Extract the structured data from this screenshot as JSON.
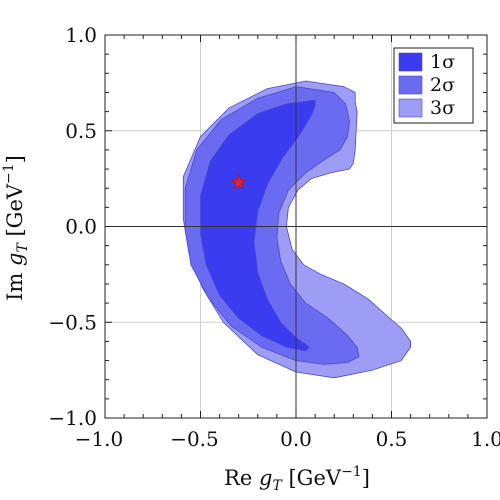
{
  "chart_data": {
    "type": "contour",
    "xlabel": "Re g_T [GeV^-1]",
    "ylabel": "Im g_T [GeV^-1]",
    "xlim": [
      -1.0,
      1.0
    ],
    "ylim": [
      -1.0,
      1.0
    ],
    "xticks": [
      "−1.0",
      "−0.5",
      "0.0",
      "0.5",
      "1.0"
    ],
    "yticks": [
      "−1.0",
      "−0.5",
      "0.0",
      "0.5",
      "1.0"
    ],
    "grid": true,
    "legend_position": "top-right",
    "legend": [
      "1σ",
      "2σ",
      "3σ"
    ],
    "colors": {
      "1σ": "#3b3bf0",
      "2σ": "#6b6bf2",
      "3σ": "#9d9df5",
      "marker": "#e8202a"
    },
    "best_fit": {
      "marker": "star",
      "x": -0.3,
      "y": 0.23
    },
    "regions": [
      {
        "name": "3σ",
        "outer": [
          [
            0.25,
            0.73
          ],
          [
            0.05,
            0.76
          ],
          [
            -0.15,
            0.72
          ],
          [
            -0.35,
            0.62
          ],
          [
            -0.5,
            0.47
          ],
          [
            -0.59,
            0.26
          ],
          [
            -0.59,
            0.04
          ],
          [
            -0.56,
            -0.14
          ],
          [
            -0.49,
            -0.32
          ],
          [
            -0.38,
            -0.5
          ],
          [
            -0.2,
            -0.67
          ],
          [
            0.0,
            -0.76
          ],
          [
            0.2,
            -0.79
          ],
          [
            0.4,
            -0.75
          ],
          [
            0.55,
            -0.7
          ],
          [
            0.6,
            -0.63
          ],
          [
            0.6,
            -0.6
          ],
          [
            0.55,
            -0.53
          ],
          [
            0.48,
            -0.47
          ],
          [
            0.38,
            -0.38
          ],
          [
            0.25,
            -0.3
          ],
          [
            0.13,
            -0.25
          ],
          [
            0.04,
            -0.2
          ],
          [
            -0.02,
            -0.12
          ],
          [
            -0.05,
            0.0
          ],
          [
            -0.04,
            0.1
          ],
          [
            0.01,
            0.19
          ],
          [
            0.08,
            0.25
          ],
          [
            0.18,
            0.28
          ],
          [
            0.28,
            0.3
          ],
          [
            0.3,
            0.33
          ],
          [
            0.31,
            0.4
          ],
          [
            0.32,
            0.6
          ]
        ],
        "inner": [
          [
            0.32,
            0.6
          ],
          [
            0.31,
            0.65
          ],
          [
            0.31,
            0.7
          ],
          [
            0.25,
            0.73
          ]
        ]
      },
      {
        "name": "2σ",
        "outer": [
          [
            0.2,
            0.7
          ],
          [
            0.0,
            0.73
          ],
          [
            -0.2,
            0.67
          ],
          [
            -0.39,
            0.56
          ],
          [
            -0.52,
            0.4
          ],
          [
            -0.58,
            0.2
          ],
          [
            -0.58,
            -0.02
          ],
          [
            -0.55,
            -0.2
          ],
          [
            -0.46,
            -0.37
          ],
          [
            -0.34,
            -0.52
          ],
          [
            -0.18,
            -0.63
          ],
          [
            0.0,
            -0.7
          ],
          [
            0.15,
            -0.72
          ],
          [
            0.27,
            -0.71
          ],
          [
            0.33,
            -0.68
          ],
          [
            0.32,
            -0.63
          ],
          [
            0.27,
            -0.57
          ],
          [
            0.17,
            -0.48
          ],
          [
            0.05,
            -0.4
          ],
          [
            -0.03,
            -0.3
          ],
          [
            -0.08,
            -0.18
          ],
          [
            -0.1,
            -0.06
          ],
          [
            -0.09,
            0.07
          ],
          [
            -0.04,
            0.19
          ],
          [
            0.05,
            0.28
          ],
          [
            0.15,
            0.35
          ],
          [
            0.23,
            0.4
          ],
          [
            0.27,
            0.47
          ],
          [
            0.28,
            0.55
          ],
          [
            0.26,
            0.64
          ]
        ],
        "inner": []
      },
      {
        "name": "1σ",
        "outer": [
          [
            0.1,
            0.66
          ],
          [
            -0.05,
            0.64
          ],
          [
            -0.2,
            0.59
          ],
          [
            -0.35,
            0.48
          ],
          [
            -0.45,
            0.34
          ],
          [
            -0.5,
            0.16
          ],
          [
            -0.5,
            -0.04
          ],
          [
            -0.47,
            -0.2
          ],
          [
            -0.4,
            -0.36
          ],
          [
            -0.3,
            -0.48
          ],
          [
            -0.18,
            -0.57
          ],
          [
            -0.05,
            -0.63
          ],
          [
            0.05,
            -0.65
          ],
          [
            0.07,
            -0.63
          ],
          [
            0.0,
            -0.58
          ],
          [
            -0.08,
            -0.5
          ],
          [
            -0.15,
            -0.38
          ],
          [
            -0.2,
            -0.24
          ],
          [
            -0.22,
            -0.08
          ],
          [
            -0.2,
            0.08
          ],
          [
            -0.15,
            0.22
          ],
          [
            -0.07,
            0.36
          ],
          [
            0.02,
            0.48
          ],
          [
            0.08,
            0.58
          ],
          [
            0.1,
            0.63
          ]
        ],
        "inner": []
      }
    ]
  }
}
